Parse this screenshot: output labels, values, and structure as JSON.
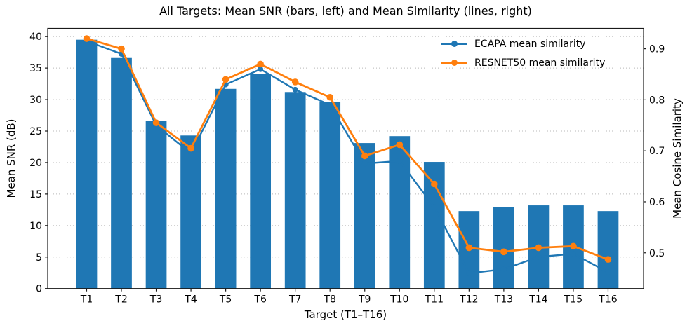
{
  "chart_data": {
    "type": "bar+line",
    "title": "All Targets: Mean SNR (bars, left) and Mean Similarity (lines, right)",
    "categories": [
      "T1",
      "T2",
      "T3",
      "T4",
      "T5",
      "T6",
      "T7",
      "T8",
      "T9",
      "T10",
      "T11",
      "T12",
      "T13",
      "T14",
      "T15",
      "T16"
    ],
    "bar_series": {
      "name": "Mean SNR",
      "axis": "left",
      "color": "#1f77b4",
      "values": [
        39.5,
        36.6,
        26.6,
        24.3,
        31.7,
        34.1,
        31.2,
        29.6,
        23.1,
        24.2,
        20.1,
        12.3,
        12.9,
        13.2,
        13.2,
        12.3
      ]
    },
    "line_series": [
      {
        "name": "ECAPA mean similarity",
        "axis": "right",
        "color": "#1f77b4",
        "values": [
          0.915,
          0.89,
          0.75,
          0.695,
          0.83,
          0.86,
          0.82,
          0.79,
          0.675,
          0.68,
          0.59,
          0.46,
          0.468,
          0.492,
          0.498,
          0.462
        ]
      },
      {
        "name": "RESNET50 mean similarity",
        "axis": "right",
        "color": "#ff7f0e",
        "values": [
          0.92,
          0.9,
          0.755,
          0.705,
          0.84,
          0.87,
          0.835,
          0.805,
          0.69,
          0.712,
          0.635,
          0.51,
          0.502,
          0.51,
          0.513,
          0.487
        ]
      }
    ],
    "left_axis": {
      "label": "Mean SNR (dB)",
      "ticks": [
        0,
        5,
        10,
        15,
        20,
        25,
        30,
        35,
        40
      ],
      "lim": [
        0,
        41.3
      ]
    },
    "right_axis": {
      "label": "Mean Cosine Similarity",
      "ticks": [
        0.5,
        0.6,
        0.7,
        0.8,
        0.9
      ],
      "lim": [
        0.43,
        0.94
      ]
    },
    "x_axis": {
      "label": "Target (T1–T16)",
      "lim": [
        -1.12,
        16.02
      ]
    },
    "bar_width": 0.6,
    "grid": "horizontal dotted",
    "legend_position": "upper right"
  }
}
